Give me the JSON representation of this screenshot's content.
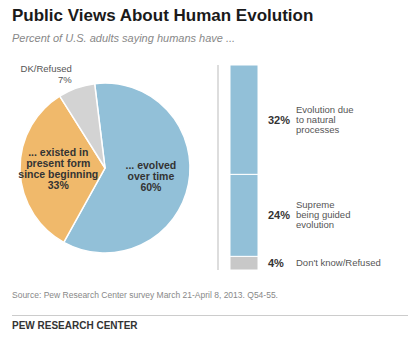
{
  "chart_data": [
    {
      "type": "pie",
      "title": "Public Views About Human Evolution",
      "subtitle": "Percent of U.S. adults saying humans have ...",
      "categories": [
        "... evolved\nover time",
        "... existed in\npresent form\nsince beginning",
        "DK/Refused"
      ],
      "values": [
        60,
        33,
        7
      ],
      "value_labels": [
        "60%",
        "33%",
        "7%"
      ],
      "colors": [
        "#92C0D8",
        "#F0B96B",
        "#D3D3D3"
      ],
      "data_labels": true,
      "source": "Source: Pew Research Center survey March 21-April 8, 2013. Q54-55.",
      "branding": "PEW RESEARCH CENTER"
    },
    {
      "type": "bar",
      "stacked": true,
      "categories": [
        null
      ],
      "series": [
        {
          "name": "Evolution due\nto natural\nprocesses",
          "color": "#92C0D8",
          "values": [
            32
          ],
          "value_labels": [
            "32%"
          ]
        },
        {
          "name": "Supreme\nbeing guided\nevolution",
          "color": "#92C0D8",
          "values": [
            24
          ],
          "value_labels": [
            "24%"
          ]
        },
        {
          "name": "Don't know/Refused",
          "color": "#C8C8C8",
          "values": [
            4
          ],
          "value_labels": [
            "4%"
          ]
        }
      ],
      "ylim": [
        0,
        60
      ],
      "yticks": [
        0,
        60
      ],
      "tick_labels": false,
      "data_labels": true
    }
  ]
}
